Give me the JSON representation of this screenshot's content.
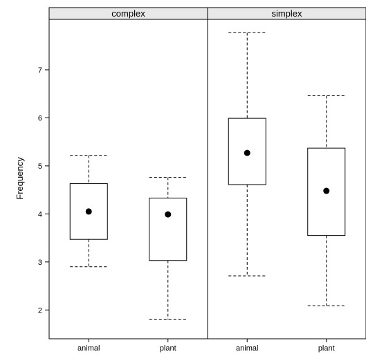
{
  "chart_data": {
    "type": "box",
    "ylabel": "Frequency",
    "ylim": [
      1.4,
      8.05
    ],
    "yticks": [
      2,
      3,
      4,
      5,
      6,
      7
    ],
    "grid": false,
    "panels": [
      {
        "name": "complex",
        "categories": [
          "animal",
          "plant"
        ],
        "boxes": [
          {
            "category": "animal",
            "whisker_low": 2.9,
            "q1": 3.47,
            "median": 4.05,
            "q3": 4.63,
            "whisker_high": 5.22
          },
          {
            "category": "plant",
            "whisker_low": 1.8,
            "q1": 3.03,
            "median": 3.99,
            "q3": 4.33,
            "whisker_high": 4.76
          }
        ]
      },
      {
        "name": "simplex",
        "categories": [
          "animal",
          "plant"
        ],
        "boxes": [
          {
            "category": "animal",
            "whisker_low": 2.71,
            "q1": 4.61,
            "median": 5.27,
            "q3": 5.99,
            "whisker_high": 7.77
          },
          {
            "category": "plant",
            "whisker_low": 2.09,
            "q1": 3.55,
            "median": 4.48,
            "q3": 5.37,
            "whisker_high": 6.46
          }
        ]
      }
    ]
  }
}
